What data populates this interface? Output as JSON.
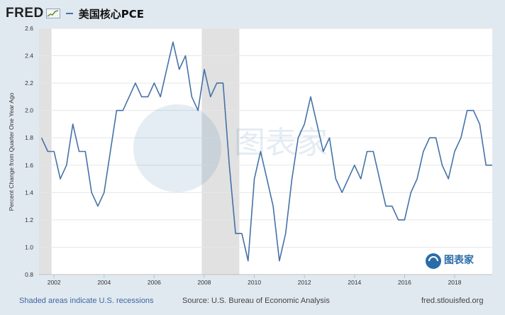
{
  "header": {
    "logo_text": "FRED",
    "title": "美国核心PCE"
  },
  "footer": {
    "note": "Shaded areas indicate U.S. recessions",
    "source": "Source: U.S. Bureau of Economic Analysis",
    "site": "fred.stlouisfed.org"
  },
  "watermark": {
    "brand": "图表家"
  },
  "chart_data": {
    "type": "line",
    "title": "美国核心PCE",
    "ylabel": "Percent Change from Quarter One Year Ago",
    "xlim": [
      2001.4,
      2019.5
    ],
    "ylim": [
      0.8,
      2.6
    ],
    "x_ticks": [
      2002,
      2004,
      2006,
      2008,
      2010,
      2012,
      2014,
      2016,
      2018
    ],
    "y_ticks": [
      0.8,
      1.0,
      1.2,
      1.4,
      1.6,
      1.8,
      2.0,
      2.2,
      2.4,
      2.6
    ],
    "line_color": "#4572a7",
    "recession_color": "#e1e1e1",
    "recessions": [
      [
        2001.25,
        2001.9
      ],
      [
        2007.9,
        2009.4
      ]
    ],
    "x": [
      2001.5,
      2001.75,
      2002.0,
      2002.25,
      2002.5,
      2002.75,
      2003.0,
      2003.25,
      2003.5,
      2003.75,
      2004.0,
      2004.25,
      2004.5,
      2004.75,
      2005.0,
      2005.25,
      2005.5,
      2005.75,
      2006.0,
      2006.25,
      2006.5,
      2006.75,
      2007.0,
      2007.25,
      2007.5,
      2007.75,
      2008.0,
      2008.25,
      2008.5,
      2008.75,
      2009.0,
      2009.25,
      2009.5,
      2009.75,
      2010.0,
      2010.25,
      2010.5,
      2010.75,
      2011.0,
      2011.25,
      2011.5,
      2011.75,
      2012.0,
      2012.25,
      2012.5,
      2012.75,
      2013.0,
      2013.25,
      2013.5,
      2013.75,
      2014.0,
      2014.25,
      2014.5,
      2014.75,
      2015.0,
      2015.25,
      2015.5,
      2015.75,
      2016.0,
      2016.25,
      2016.5,
      2016.75,
      2017.0,
      2017.25,
      2017.5,
      2017.75,
      2018.0,
      2018.25,
      2018.5,
      2018.75,
      2019.0,
      2019.25,
      2019.5
    ],
    "y": [
      1.8,
      1.7,
      1.7,
      1.5,
      1.6,
      1.9,
      1.7,
      1.7,
      1.4,
      1.3,
      1.4,
      1.7,
      2.0,
      2.0,
      2.1,
      2.2,
      2.1,
      2.1,
      2.2,
      2.1,
      2.3,
      2.5,
      2.3,
      2.4,
      2.1,
      2.0,
      2.3,
      2.1,
      2.2,
      2.2,
      1.6,
      1.1,
      1.1,
      0.9,
      1.5,
      1.7,
      1.5,
      1.3,
      0.9,
      1.1,
      1.5,
      1.8,
      1.9,
      2.1,
      1.9,
      1.7,
      1.8,
      1.5,
      1.4,
      1.5,
      1.6,
      1.5,
      1.7,
      1.7,
      1.5,
      1.3,
      1.3,
      1.2,
      1.2,
      1.4,
      1.5,
      1.7,
      1.8,
      1.8,
      1.6,
      1.5,
      1.7,
      1.8,
      2.0,
      2.0,
      1.9,
      1.6,
      1.6
    ]
  }
}
